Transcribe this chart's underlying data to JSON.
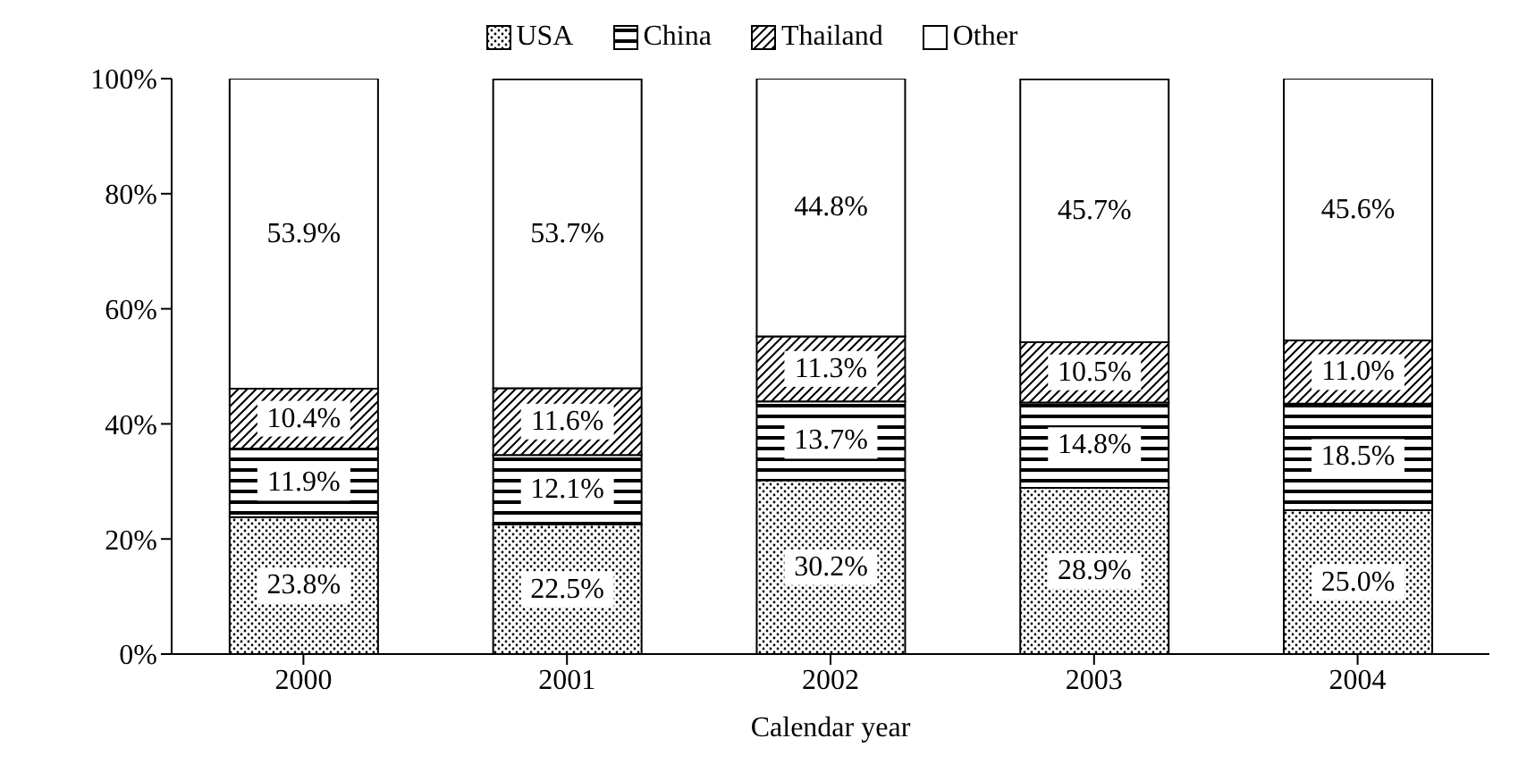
{
  "chart_data": {
    "type": "bar",
    "stacked": true,
    "xlabel": "Calendar year",
    "categories": [
      "2000",
      "2001",
      "2002",
      "2003",
      "2004"
    ],
    "series": [
      {
        "name": "USA",
        "color": "#000000",
        "values": [
          23.8,
          22.5,
          30.2,
          28.9,
          25.0
        ],
        "value_labels": [
          "23.8%",
          "22.5%",
          "30.2%",
          "28.9%",
          "25.0%"
        ]
      },
      {
        "name": "China",
        "color": "#000000",
        "values": [
          11.9,
          12.1,
          13.7,
          14.8,
          18.5
        ],
        "value_labels": [
          "11.9%",
          "12.1%",
          "13.7%",
          "14.8%",
          "18.5%"
        ]
      },
      {
        "name": "Thailand",
        "color": "#000000",
        "values": [
          10.4,
          11.6,
          11.3,
          10.5,
          11.0
        ],
        "value_labels": [
          "10.4%",
          "11.6%",
          "11.3%",
          "10.5%",
          "11.0%"
        ]
      },
      {
        "name": "Other",
        "color": "#ffffff",
        "values": [
          53.9,
          53.7,
          44.8,
          45.7,
          45.6
        ],
        "value_labels": [
          "53.9%",
          "53.7%",
          "44.8%",
          "45.7%",
          "45.6%"
        ]
      }
    ],
    "ylim": [
      0,
      100
    ],
    "yticks": [
      {
        "value": 0,
        "label": "0%"
      },
      {
        "value": 20,
        "label": "20%"
      },
      {
        "value": 40,
        "label": "40%"
      },
      {
        "value": 60,
        "label": "60%"
      },
      {
        "value": 80,
        "label": "80%"
      },
      {
        "value": 100,
        "label": "100%"
      }
    ],
    "legend": "top"
  }
}
